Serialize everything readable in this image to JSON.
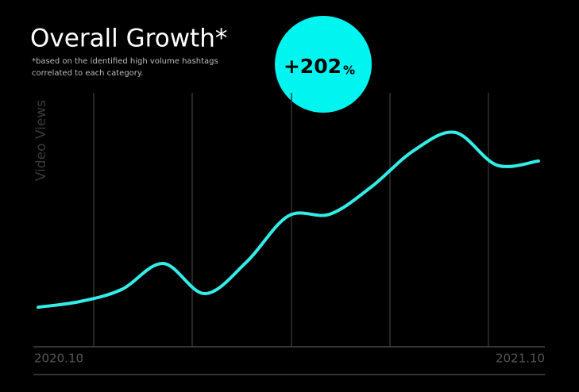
{
  "chart_data": {
    "type": "line",
    "title": "Overall Growth*",
    "subtitle": [
      "*based on the identified high volume hashtags",
      "correlated to each category."
    ],
    "badge": {
      "value": "+202",
      "unit": "%"
    },
    "y_label": "Video Views",
    "categories": [
      "2020.10",
      null,
      null,
      null,
      null,
      null,
      null,
      null,
      null,
      null,
      null,
      null,
      "2021.10"
    ],
    "series": [
      {
        "name": "Video Views",
        "color": "#33ede8",
        "values": [
          15.5,
          17.7,
          22.4,
          32.6,
          20.8,
          33.2,
          51.2,
          51.9,
          62.7,
          76.7,
          83.9,
          71.1,
          72.7
        ]
      }
    ],
    "ylim": [
      0,
      100
    ],
    "grid": true
  }
}
